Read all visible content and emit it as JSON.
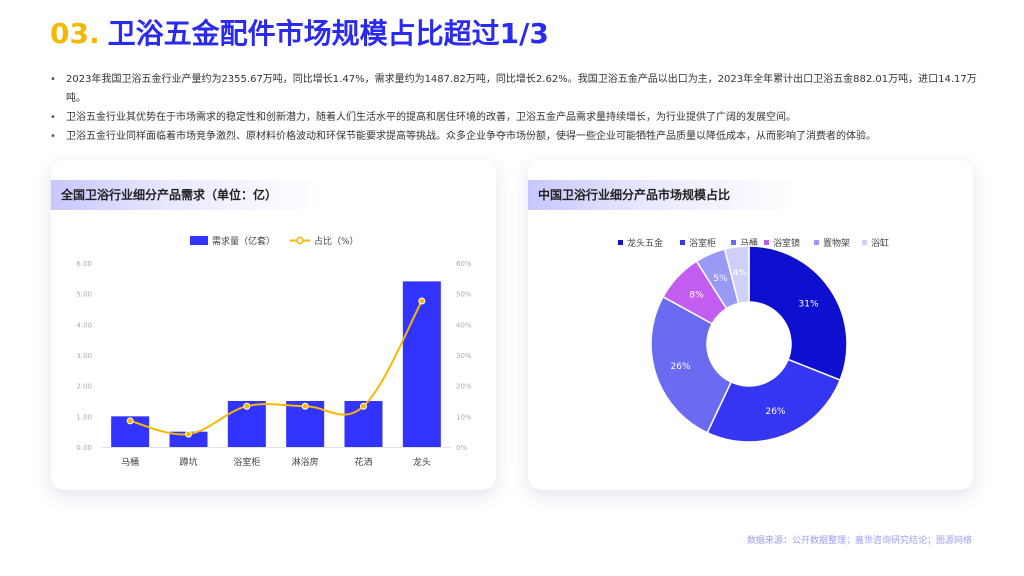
{
  "header": {
    "number": "03.",
    "title": "卫浴五金配件市场规模占比超过1/3"
  },
  "bullets": [
    "2023年我国卫浴五金行业产量约为2355.67万吨，同比增长1.47%，需求量约为1487.82万吨，同比增长2.62%。我国卫浴五金产品以出口为主，2023年全年累计出口卫浴五金882.01万吨，进口14.17万吨。",
    "卫浴五金行业其优势在于市场需求的稳定性和创新潜力，随着人们生活水平的提高和居住环境的改善，卫浴五金产品需求量持续增长，为行业提供了广阔的发展空间。",
    "卫浴五金行业同样面临着市场竞争激烈、原材料价格波动和环保节能要求提高等挑战。众多企业争夺市场份额，使得一些企业可能牺牲产品质量以降低成本，从而影响了消费者的体验。"
  ],
  "left_card": {
    "title": "全国卫浴行业细分产品需求（单位：亿）"
  },
  "right_card": {
    "title": "中国卫浴行业细分产品市场规模占比"
  },
  "source": "数据来源：公开数据整理；嘉世咨询研究结论；图源网络",
  "colors": {
    "accent": "#2b2bf0",
    "number": "#f5b800",
    "bar": "#3333ff",
    "line": "#f5b800"
  },
  "chart_data": [
    {
      "type": "bar",
      "categories": [
        "马桶",
        "蹲坑",
        "浴室柜",
        "淋浴房",
        "花洒",
        "龙头"
      ],
      "series": [
        {
          "name": "需求量（亿套）",
          "type": "bar",
          "axis": "left",
          "values": [
            1.0,
            0.5,
            1.5,
            1.5,
            1.5,
            5.4
          ]
        },
        {
          "name": "占比（%）",
          "type": "line",
          "axis": "right",
          "values": [
            8.5,
            4.2,
            13.3,
            13.3,
            13.3,
            47.6
          ]
        }
      ],
      "ylim": [
        0,
        6
      ],
      "yticks": [
        "0.00",
        "1.00",
        "2.00",
        "3.00",
        "4.00",
        "5.00",
        "6.00"
      ],
      "y2lim": [
        0,
        60
      ],
      "y2ticks": [
        "0%",
        "10%",
        "20%",
        "30%",
        "40%",
        "50%",
        "60%"
      ],
      "legend": "top-center",
      "grid": false
    },
    {
      "type": "pie",
      "donut": true,
      "labels": [
        "龙头五金",
        "浴室柜",
        "马桶",
        "浴室镜",
        "置物架",
        "浴缸"
      ],
      "values": [
        31,
        26,
        26,
        8,
        5,
        4
      ],
      "value_labels": [
        "31%",
        "26%",
        "26%",
        "8%",
        "5%",
        "4%"
      ],
      "colors": [
        "#0f0fd0",
        "#3535f2",
        "#6b6bf2",
        "#c35cf0",
        "#9a9af6",
        "#cfcff9"
      ],
      "legend": "top-center"
    }
  ]
}
